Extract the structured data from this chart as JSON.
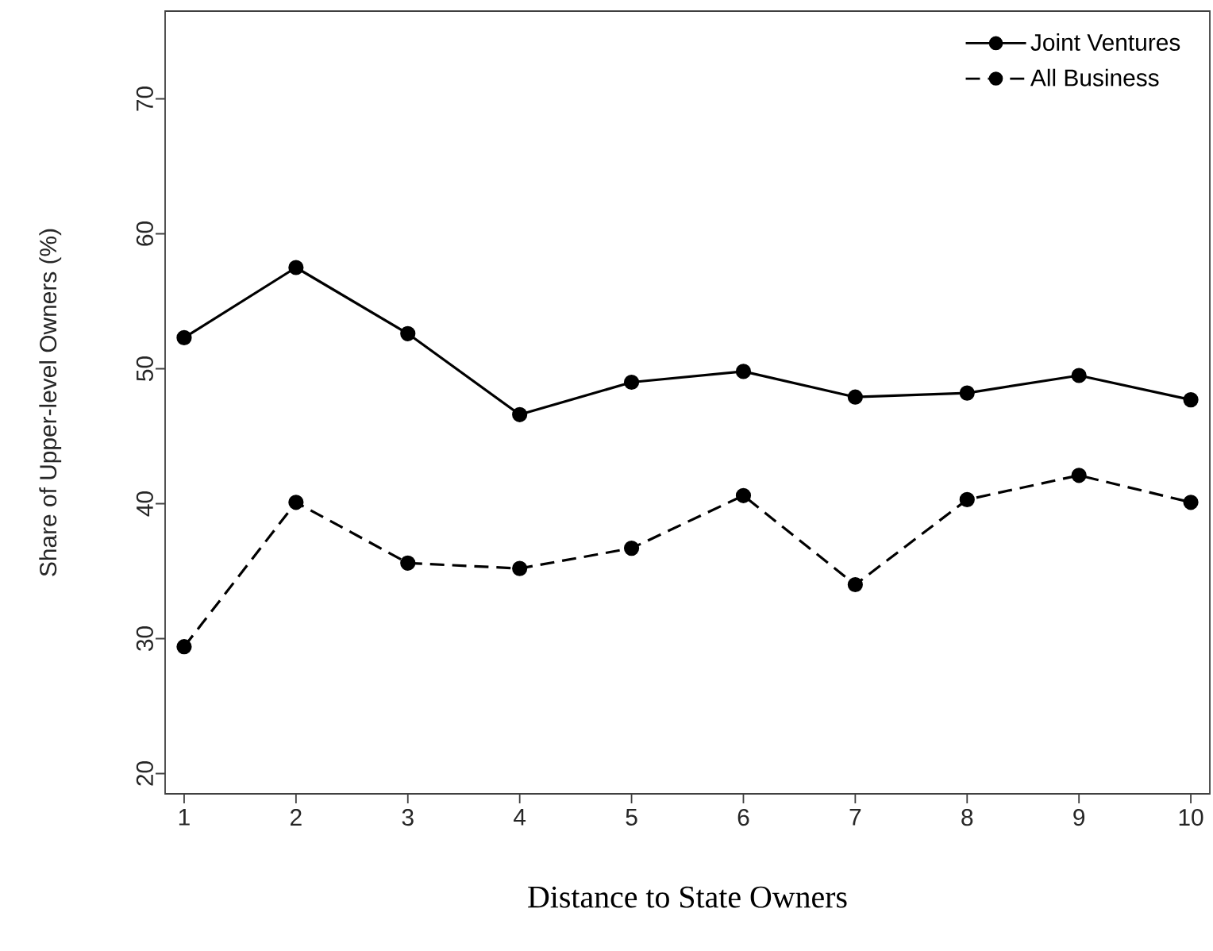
{
  "chart_data": {
    "type": "line",
    "xlabel": "Distance to State Owners",
    "ylabel": "Share of Upper-level Owners (%)",
    "x": [
      1,
      2,
      3,
      4,
      5,
      6,
      7,
      8,
      9,
      10
    ],
    "series": [
      {
        "name": "Joint Ventures",
        "color": "#000000",
        "line_style": "solid",
        "values": [
          52.3,
          57.5,
          52.6,
          46.6,
          49.0,
          49.8,
          47.9,
          48.2,
          49.5,
          47.7
        ]
      },
      {
        "name": "All Business",
        "color": "#000000",
        "line_style": "dashed",
        "values": [
          29.4,
          40.1,
          35.6,
          35.2,
          36.7,
          40.6,
          34.0,
          40.3,
          42.1,
          40.1
        ]
      }
    ],
    "xlim": [
      0.83,
      10.17
    ],
    "ylim": [
      18.5,
      76.5
    ],
    "xticks": [
      1,
      2,
      3,
      4,
      5,
      6,
      7,
      8,
      9,
      10
    ],
    "yticks": [
      20,
      30,
      40,
      50,
      60,
      70
    ],
    "marker": "circle",
    "legend": "top right",
    "grid": false
  }
}
